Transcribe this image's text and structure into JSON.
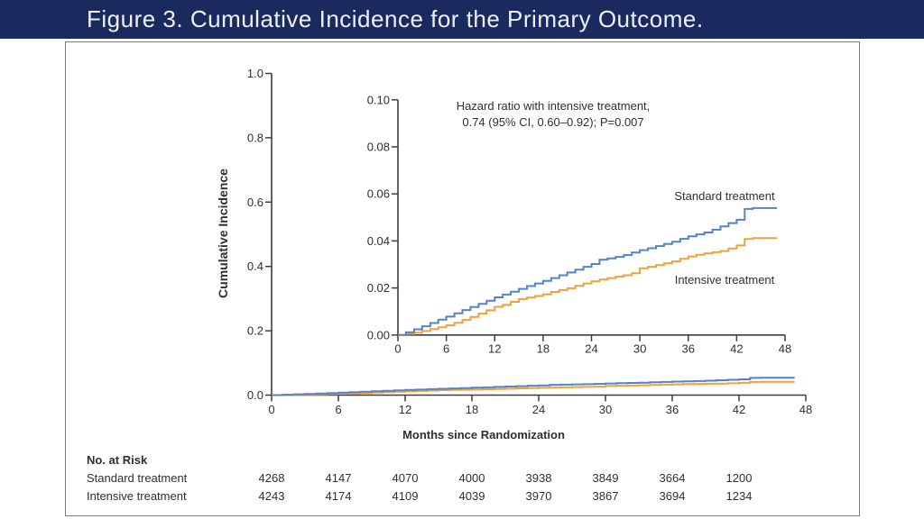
{
  "page": {
    "title": "Figure 3. Cumulative Incidence for the Primary Outcome."
  },
  "colors": {
    "header_bg": "#1b2a5e",
    "header_text": "#eef0f8",
    "standard": "#5583c7",
    "intensive": "#f0a13c",
    "axis": "#3e3e3e",
    "text": "#2f2f2f",
    "panel_border": "#7a7a7a"
  },
  "chart_data": {
    "type": "line",
    "subtype": "kaplan-meier-cumulative-incidence-step",
    "title": "Figure 3. Cumulative Incidence for the Primary Outcome.",
    "xlabel": "Months since Randomization",
    "ylabel": "Cumulative Incidence",
    "main_axis": {
      "xlim": [
        0,
        48
      ],
      "ylim": [
        0,
        1.0
      ],
      "xticks": [
        0,
        6,
        12,
        18,
        24,
        30,
        36,
        42,
        48
      ],
      "ytick_labels": [
        "0.0",
        "0.2",
        "0.4",
        "0.6",
        "0.8",
        "1.0"
      ],
      "ytick_values": [
        0,
        0.2,
        0.4,
        0.6,
        0.8,
        1.0
      ],
      "grid": false
    },
    "inset_axis": {
      "xlim": [
        0,
        48
      ],
      "ylim": [
        0,
        0.1
      ],
      "xticks": [
        0,
        6,
        12,
        18,
        24,
        30,
        36,
        42,
        48
      ],
      "ytick_labels": [
        "0.00",
        "0.02",
        "0.04",
        "0.06",
        "0.08",
        "0.10"
      ],
      "ytick_values": [
        0,
        0.02,
        0.04,
        0.06,
        0.08,
        0.1
      ],
      "grid": false
    },
    "annotation": {
      "line1": "Hazard ratio with intensive treatment,",
      "line2": "0.74 (95% CI, 0.60–0.92); P=0.007"
    },
    "x_months": "index of each value, months 0 through 47",
    "series": [
      {
        "name": "Standard treatment",
        "color_key": "standard",
        "values": [
          0.0,
          0.0012,
          0.0024,
          0.0037,
          0.0051,
          0.0065,
          0.0078,
          0.0092,
          0.0106,
          0.0119,
          0.0132,
          0.0146,
          0.016,
          0.0172,
          0.0184,
          0.0196,
          0.0208,
          0.0219,
          0.023,
          0.0242,
          0.0254,
          0.0266,
          0.0278,
          0.029,
          0.0302,
          0.032,
          0.0326,
          0.0332,
          0.034,
          0.0351,
          0.0361,
          0.0369,
          0.0378,
          0.0387,
          0.0397,
          0.0409,
          0.042,
          0.0428,
          0.0436,
          0.0448,
          0.0462,
          0.0476,
          0.049,
          0.0536,
          0.054,
          0.054,
          0.054,
          0.054
        ]
      },
      {
        "name": "Intensive treatment",
        "color_key": "intensive",
        "values": [
          0.0,
          0.0005,
          0.001,
          0.0017,
          0.0025,
          0.0033,
          0.0041,
          0.0052,
          0.0064,
          0.0077,
          0.0091,
          0.0105,
          0.012,
          0.0128,
          0.0141,
          0.0153,
          0.0159,
          0.0166,
          0.0173,
          0.0183,
          0.0191,
          0.0199,
          0.0209,
          0.0219,
          0.0228,
          0.0236,
          0.0242,
          0.0248,
          0.0254,
          0.0263,
          0.0284,
          0.029,
          0.0297,
          0.0305,
          0.0313,
          0.0324,
          0.0334,
          0.0341,
          0.0347,
          0.0352,
          0.0357,
          0.0368,
          0.0381,
          0.0408,
          0.0412,
          0.0412,
          0.0412,
          0.0412
        ]
      }
    ],
    "legend_position": "labels-on-curves-inset"
  },
  "risk_table": {
    "header": "No. at Risk",
    "columns_months": [
      0,
      6,
      12,
      18,
      24,
      30,
      36,
      42
    ],
    "rows": [
      {
        "label": "Standard treatment",
        "values": [
          "4268",
          "4147",
          "4070",
          "4000",
          "3938",
          "3849",
          "3664",
          "1200"
        ]
      },
      {
        "label": "Intensive treatment",
        "values": [
          "4243",
          "4174",
          "4109",
          "4039",
          "3970",
          "3867",
          "3694",
          "1234"
        ]
      }
    ]
  }
}
